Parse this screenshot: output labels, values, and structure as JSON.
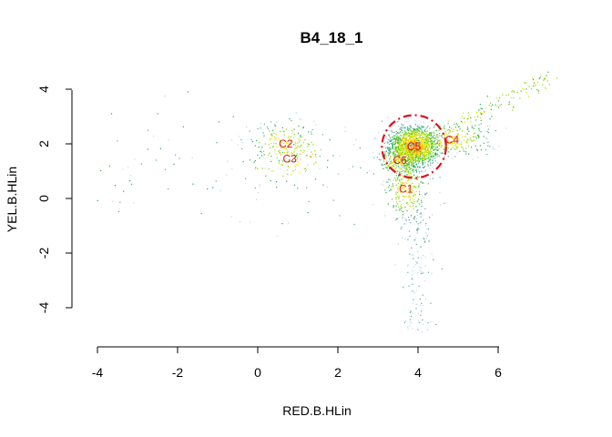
{
  "chart_data": {
    "type": "scatter",
    "title": "B4_18_1",
    "xlabel": "RED.B.HLin",
    "ylabel": "YEL.B.HLin",
    "xlim": [
      -4.3,
      6.3
    ],
    "ylim": [
      -5.2,
      4.4
    ],
    "x_ticks": [
      -4,
      -2,
      0,
      2,
      4,
      6
    ],
    "y_ticks": [
      -4,
      -2,
      0,
      2,
      4
    ],
    "grid": false,
    "density_colors": [
      "#bcd8ee",
      "#5fa59a",
      "#22b14c",
      "#8ed900",
      "#d8e000",
      "#ffd700",
      "#ff8c00"
    ],
    "clusters": [
      {
        "label": "C2",
        "x": 0.7,
        "y": 2.0,
        "spread_x": 0.45,
        "spread_y": 0.4,
        "n": 160
      },
      {
        "label": "C3",
        "x": 0.8,
        "y": 1.45,
        "spread_x": 0.6,
        "spread_y": 0.55,
        "n": 90
      },
      {
        "label": "C5",
        "x": 3.9,
        "y": 1.9,
        "spread_x": 0.3,
        "spread_y": 0.35,
        "n": 1400
      },
      {
        "label": "C6",
        "x": 3.55,
        "y": 1.4,
        "spread_x": 0.28,
        "spread_y": 0.35,
        "n": 300
      },
      {
        "label": "C4",
        "x": 4.85,
        "y": 2.15,
        "spread_x": 0.5,
        "spread_y": 0.3,
        "n": 250
      },
      {
        "label": "C1",
        "x": 3.7,
        "y": 0.35,
        "spread_x": 0.25,
        "spread_y": 0.6,
        "n": 250
      }
    ],
    "tail": {
      "x": 4.0,
      "y_from": -4.9,
      "y_to": -0.5
    },
    "diagonal": {
      "x_from": 4.6,
      "y_from": 2.4,
      "x_to": 7.3,
      "y_to": 4.4
    },
    "gate": {
      "x": 3.9,
      "y": 1.9,
      "rx": 0.8,
      "ry": 1.15,
      "color": "#e0101b"
    }
  }
}
